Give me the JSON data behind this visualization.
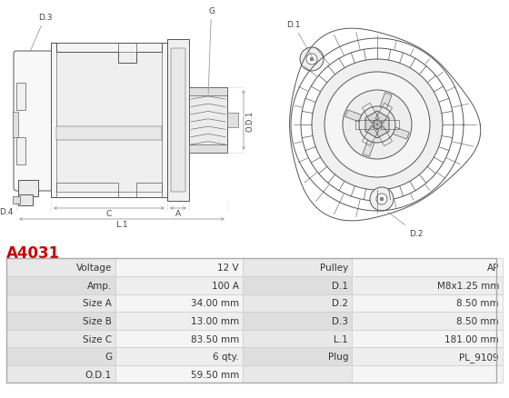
{
  "title": "A4031",
  "title_color": "#cc0000",
  "bg_color": "#ffffff",
  "table_data": [
    [
      "Voltage",
      "12 V",
      "Pulley",
      "AP"
    ],
    [
      "Amp.",
      "100 A",
      "D.1",
      "M8x1.25 mm"
    ],
    [
      "Size A",
      "34.00 mm",
      "D.2",
      "8.50 mm"
    ],
    [
      "Size B",
      "13.00 mm",
      "D.3",
      "8.50 mm"
    ],
    [
      "Size C",
      "83.50 mm",
      "L.1",
      "181.00 mm"
    ],
    [
      "G",
      "6 qty.",
      "Plug",
      "PL_9109"
    ],
    [
      "O.D.1",
      "59.50 mm",
      "",
      ""
    ]
  ],
  "line_color": "#888888",
  "line_color_dark": "#555555",
  "table_label_bg": "#e8e8e8",
  "table_val_bg": "#f7f7f7",
  "table_border": "#cccccc",
  "text_color": "#333333"
}
